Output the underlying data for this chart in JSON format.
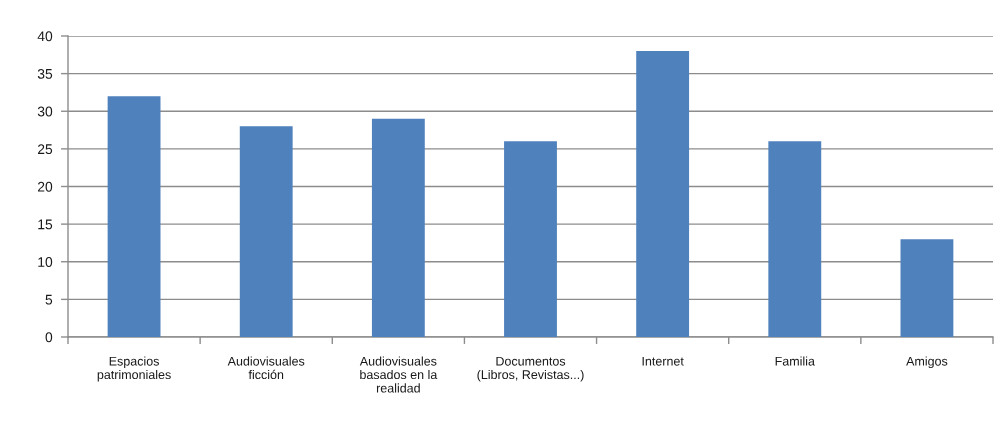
{
  "chart_data": {
    "type": "bar",
    "categories": [
      "Espacios\npatrimoniales",
      "Audiovisuales\nficción",
      "Audiovisuales\nbasados en la\nrealidad",
      "Documentos\n(Libros, Revistas...)",
      "Internet",
      "Familia",
      "Amigos"
    ],
    "values": [
      32,
      28,
      29,
      26,
      38,
      26,
      13
    ],
    "color": "#4f81bd",
    "ylim": [
      0,
      40
    ],
    "yticks": [
      0,
      5,
      10,
      15,
      20,
      25,
      30,
      35,
      40
    ],
    "grid": "y"
  }
}
